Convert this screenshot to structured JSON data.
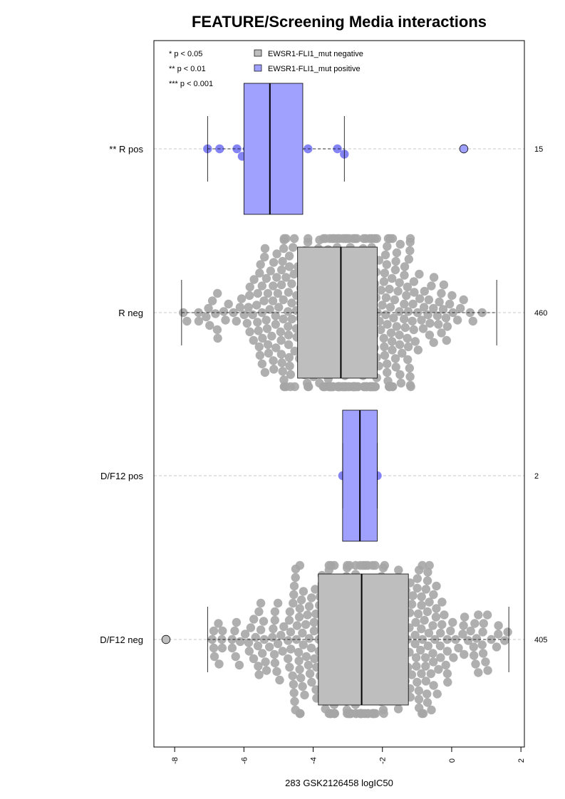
{
  "chart_data": {
    "type": "box",
    "title": "FEATURE/Screening Media interactions",
    "xlabel": "283 GSK2126458 logIC50",
    "ylabel": "",
    "orientation": "horizontal",
    "xlim": [
      -8.6,
      2.1
    ],
    "x_ticks": [
      -8,
      -6,
      -4,
      -2,
      0,
      2
    ],
    "x_tick_labels": [
      "-8",
      "-6",
      "-4",
      "-2",
      "0",
      "2"
    ],
    "grid": "dashed horizontal line through each group",
    "legend": {
      "placement": "top-left",
      "significance": [
        "* p < 0.05",
        "** p < 0.01",
        "*** p < 0.001"
      ],
      "entries": [
        {
          "label": "EWSR1-FLI1_mut negative",
          "color": "#bebebe"
        },
        {
          "label": "EWSR1-FLI1_mut positive",
          "color": "#a0a0ff"
        }
      ]
    },
    "colors": {
      "negative_box": "#bebebe",
      "positive_box": "#a0a0ff",
      "negative_points": "#a6a6a6",
      "positive_points": "#6f6ff2",
      "grid": "#c8c8c8"
    },
    "groups": [
      {
        "label": "** R pos",
        "count": "15",
        "status": "positive",
        "whisker_low": -7.05,
        "q1": -6.0,
        "median": -5.25,
        "q3": -4.3,
        "whisker_high": -3.1,
        "points": [
          -7.05,
          -6.7,
          -6.2,
          -5.9,
          -5.8,
          -5.6,
          -5.25,
          -5.05,
          -4.6,
          -4.5,
          -4.15,
          -3.3,
          -3.1,
          0.35,
          -6.05
        ],
        "outliers": [
          0.35
        ]
      },
      {
        "label": "R neg",
        "count": "460",
        "status": "negative",
        "whisker_low": -7.8,
        "q1": -4.45,
        "median": -3.2,
        "q3": -2.15,
        "whisker_high": 1.3,
        "points_n": 460,
        "outliers": []
      },
      {
        "label": "D/F12 pos",
        "count": "2",
        "status": "positive",
        "whisker_low": -3.15,
        "q1": -3.15,
        "median": -2.65,
        "q3": -2.15,
        "whisker_high": -2.15,
        "points": [
          -3.15,
          -2.15
        ],
        "outliers": []
      },
      {
        "label": "D/F12 neg",
        "count": "405",
        "status": "negative",
        "whisker_low": -7.05,
        "q1": -3.85,
        "median": -2.6,
        "q3": -1.25,
        "whisker_high": 1.65,
        "points_n": 405,
        "outliers": [
          -8.25
        ]
      }
    ]
  }
}
